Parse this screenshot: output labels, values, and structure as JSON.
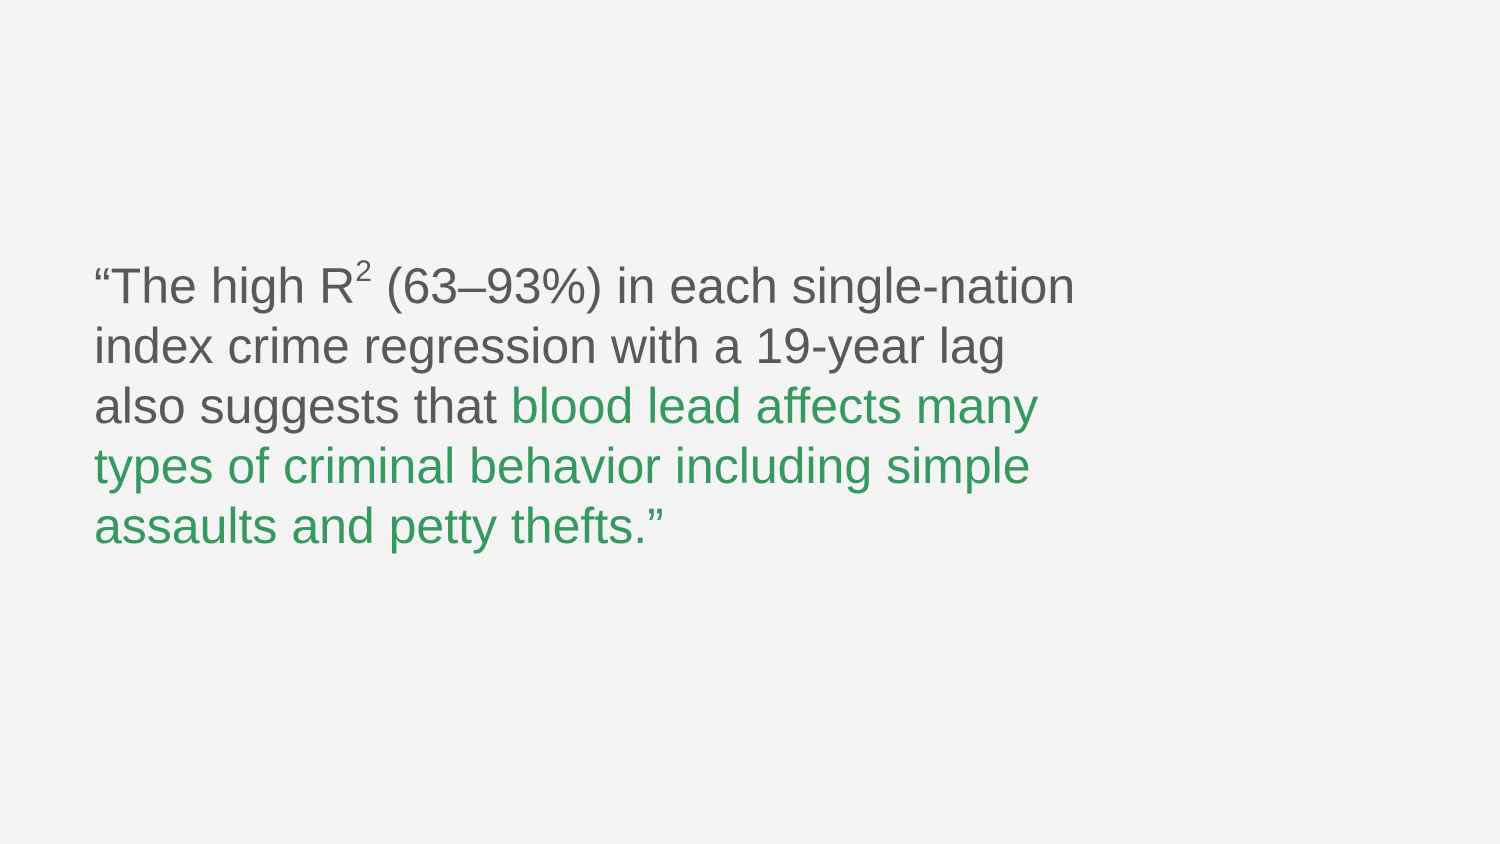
{
  "quote": {
    "open_mark": "“",
    "l1_before_sup": "The high R",
    "superscript": "2",
    "l1_after_sup": " (63–93%) in each single-nation",
    "l2": "index crime regression with a 19-year lag",
    "l3_plain": "also suggests that ",
    "l3_highlight": "blood lead affects many",
    "l4_highlight": "types of criminal behavior including simple",
    "l5_highlight": "assaults and petty thefts.",
    "close_mark": "”"
  },
  "colors": {
    "background": "#f4f4f4",
    "text": "#595959",
    "highlight": "#36995f"
  }
}
